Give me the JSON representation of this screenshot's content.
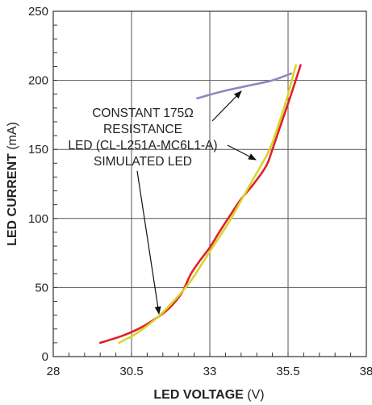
{
  "chart_data": {
    "type": "line",
    "xlabel_bold": "LED VOLTAGE",
    "xlabel_unit": " (V)",
    "ylabel_bold": "LED CURRENT",
    "ylabel_unit": " (mA)",
    "xlim": [
      28,
      38
    ],
    "ylim": [
      0,
      250
    ],
    "x_ticks": [
      28,
      30.5,
      33,
      35.5,
      38
    ],
    "x_tick_labels": [
      "28",
      "30.5",
      "33",
      "35.5",
      "38"
    ],
    "y_ticks": [
      0,
      50,
      100,
      150,
      200,
      250
    ],
    "y_tick_labels": [
      "0",
      "50",
      "100",
      "150",
      "200",
      "250"
    ],
    "grid": true,
    "series": [
      {
        "name": "CONSTANT 175Ω RESISTANCE",
        "color": "#9683c0",
        "points": [
          [
            32.6,
            187
          ],
          [
            33.4,
            192
          ],
          [
            34.2,
            196
          ],
          [
            35.0,
            200
          ],
          [
            35.6,
            205
          ]
        ]
      },
      {
        "name": "LED (CL-L251A-MC6L1-A)",
        "color": "#e0202a",
        "points": [
          [
            29.5,
            10
          ],
          [
            30.2,
            15
          ],
          [
            30.8,
            21
          ],
          [
            31.3,
            28
          ],
          [
            31.7,
            35
          ],
          [
            32.1,
            46
          ],
          [
            32.4,
            60
          ],
          [
            32.7,
            70
          ],
          [
            33.0,
            79
          ],
          [
            33.3,
            90
          ],
          [
            33.7,
            104
          ],
          [
            34.0,
            114
          ],
          [
            34.4,
            125
          ],
          [
            34.8,
            138
          ],
          [
            35.0,
            150
          ],
          [
            35.3,
            170
          ],
          [
            35.6,
            190
          ],
          [
            35.9,
            211
          ]
        ]
      },
      {
        "name": "SIMULATED LED",
        "color": "#d6d62a",
        "points": [
          [
            30.1,
            10
          ],
          [
            30.6,
            16
          ],
          [
            31.1,
            24
          ],
          [
            31.5,
            32
          ],
          [
            32.0,
            44
          ],
          [
            32.4,
            55
          ],
          [
            32.8,
            69
          ],
          [
            33.2,
            83
          ],
          [
            33.6,
            97
          ],
          [
            34.0,
            113
          ],
          [
            34.4,
            129
          ],
          [
            34.8,
            145
          ],
          [
            35.0,
            155
          ],
          [
            35.3,
            175
          ],
          [
            35.5,
            190
          ],
          [
            35.75,
            211
          ]
        ]
      }
    ],
    "annotations": {
      "line1": "CONSTANT 175Ω",
      "line2": "RESISTANCE",
      "line3": "LED (CL-L251A-MC6L1-A)",
      "line4": "SIMULATED LED"
    }
  }
}
